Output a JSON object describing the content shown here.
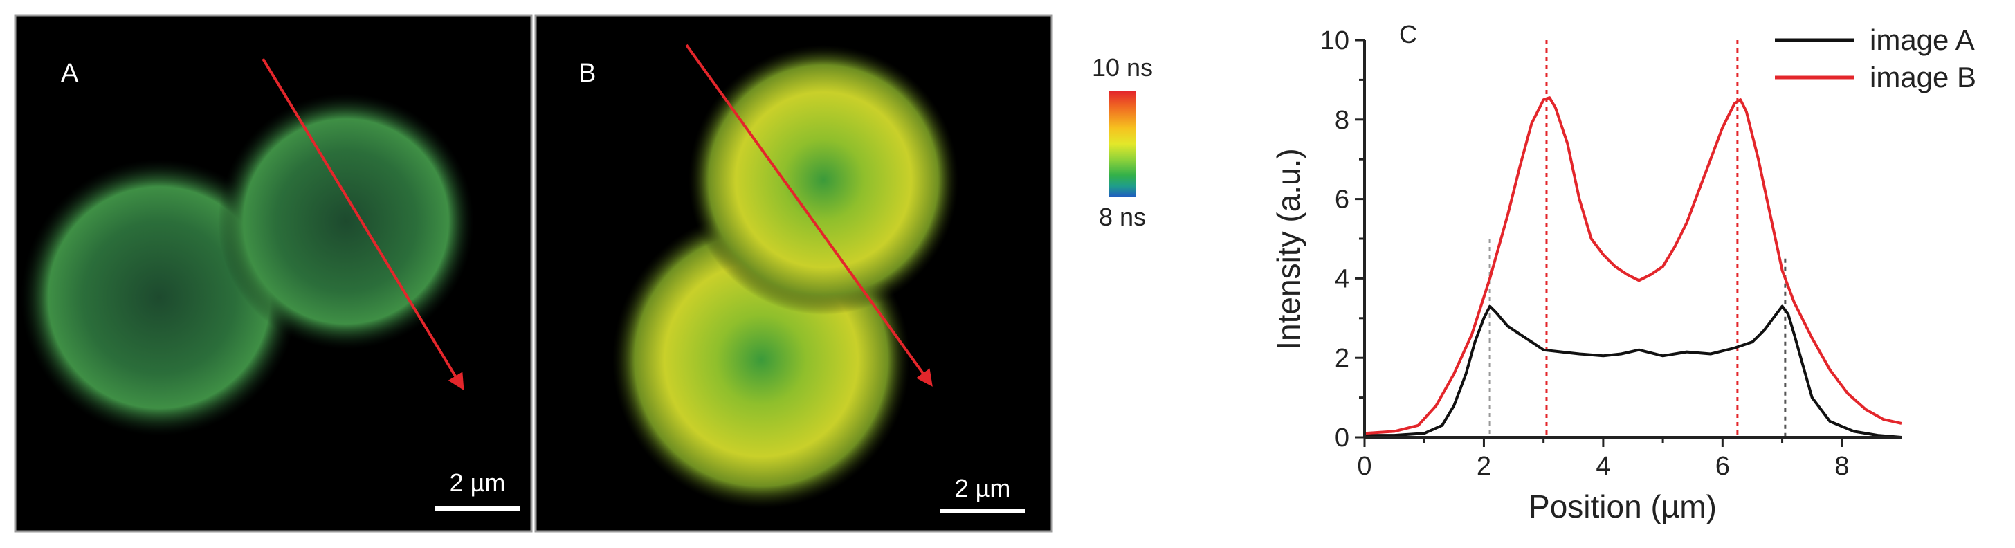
{
  "panels": {
    "a": {
      "letter": "A",
      "scale_bar": "2 µm"
    },
    "b": {
      "letter": "B",
      "scale_bar": "2 µm"
    }
  },
  "colorbar": {
    "max_label": "10 ns",
    "min_label": "8 ns",
    "colors": [
      "#e3262b",
      "#f06a22",
      "#f6c21f",
      "#e3e82a",
      "#8ed23a",
      "#32b04a",
      "#1f9e8a",
      "#1f5fbf"
    ]
  },
  "colors": {
    "line_color": "#e3262b",
    "image_a": "#111111",
    "image_b": "#e3262b"
  },
  "chart_data": {
    "type": "line",
    "panel_letter": "C",
    "xlabel": "Position (µm)",
    "ylabel": "Intensity (a.u.)",
    "xlim": [
      0,
      9
    ],
    "ylim": [
      0,
      10
    ],
    "xticks": [
      0,
      2,
      4,
      6,
      8
    ],
    "yticks": [
      0,
      2,
      4,
      6,
      8,
      10
    ],
    "legend_position": "top-right",
    "series": [
      {
        "name": "image A",
        "color": "#111111",
        "x": [
          0,
          0.5,
          1.0,
          1.3,
          1.5,
          1.7,
          1.85,
          2.0,
          2.1,
          2.2,
          2.4,
          2.6,
          2.8,
          3.0,
          3.3,
          3.6,
          4.0,
          4.3,
          4.6,
          5.0,
          5.4,
          5.8,
          6.2,
          6.5,
          6.7,
          6.9,
          7.0,
          7.1,
          7.2,
          7.35,
          7.5,
          7.8,
          8.2,
          8.6,
          9.0
        ],
        "y": [
          0.05,
          0.05,
          0.1,
          0.3,
          0.8,
          1.6,
          2.4,
          3.0,
          3.3,
          3.15,
          2.8,
          2.6,
          2.4,
          2.2,
          2.15,
          2.1,
          2.05,
          2.1,
          2.2,
          2.05,
          2.15,
          2.1,
          2.25,
          2.4,
          2.7,
          3.1,
          3.3,
          3.1,
          2.6,
          1.8,
          1.0,
          0.4,
          0.15,
          0.05,
          0.0
        ]
      },
      {
        "name": "image B",
        "color": "#e3262b",
        "x": [
          0,
          0.5,
          0.9,
          1.2,
          1.5,
          1.8,
          2.1,
          2.4,
          2.6,
          2.8,
          3.0,
          3.1,
          3.2,
          3.4,
          3.6,
          3.8,
          4.0,
          4.2,
          4.4,
          4.6,
          4.8,
          5.0,
          5.2,
          5.4,
          5.6,
          5.8,
          6.0,
          6.2,
          6.3,
          6.4,
          6.6,
          6.8,
          7.0,
          7.2,
          7.5,
          7.8,
          8.1,
          8.4,
          8.7,
          9.0
        ],
        "y": [
          0.1,
          0.15,
          0.3,
          0.8,
          1.6,
          2.6,
          4.0,
          5.6,
          6.8,
          7.9,
          8.5,
          8.55,
          8.3,
          7.4,
          6.0,
          5.0,
          4.6,
          4.3,
          4.1,
          3.95,
          4.1,
          4.3,
          4.8,
          5.4,
          6.2,
          7.0,
          7.8,
          8.4,
          8.5,
          8.2,
          7.0,
          5.6,
          4.2,
          3.4,
          2.5,
          1.7,
          1.1,
          0.7,
          0.45,
          0.35
        ]
      }
    ],
    "reference_lines": [
      {
        "x": 2.1,
        "color": "#999999",
        "y_top": 5.0
      },
      {
        "x": 3.05,
        "color": "#e3262b",
        "y_top": 10.0
      },
      {
        "x": 6.25,
        "color": "#e3262b",
        "y_top": 10.0
      },
      {
        "x": 7.05,
        "color": "#555555",
        "y_top": 4.5
      }
    ]
  }
}
